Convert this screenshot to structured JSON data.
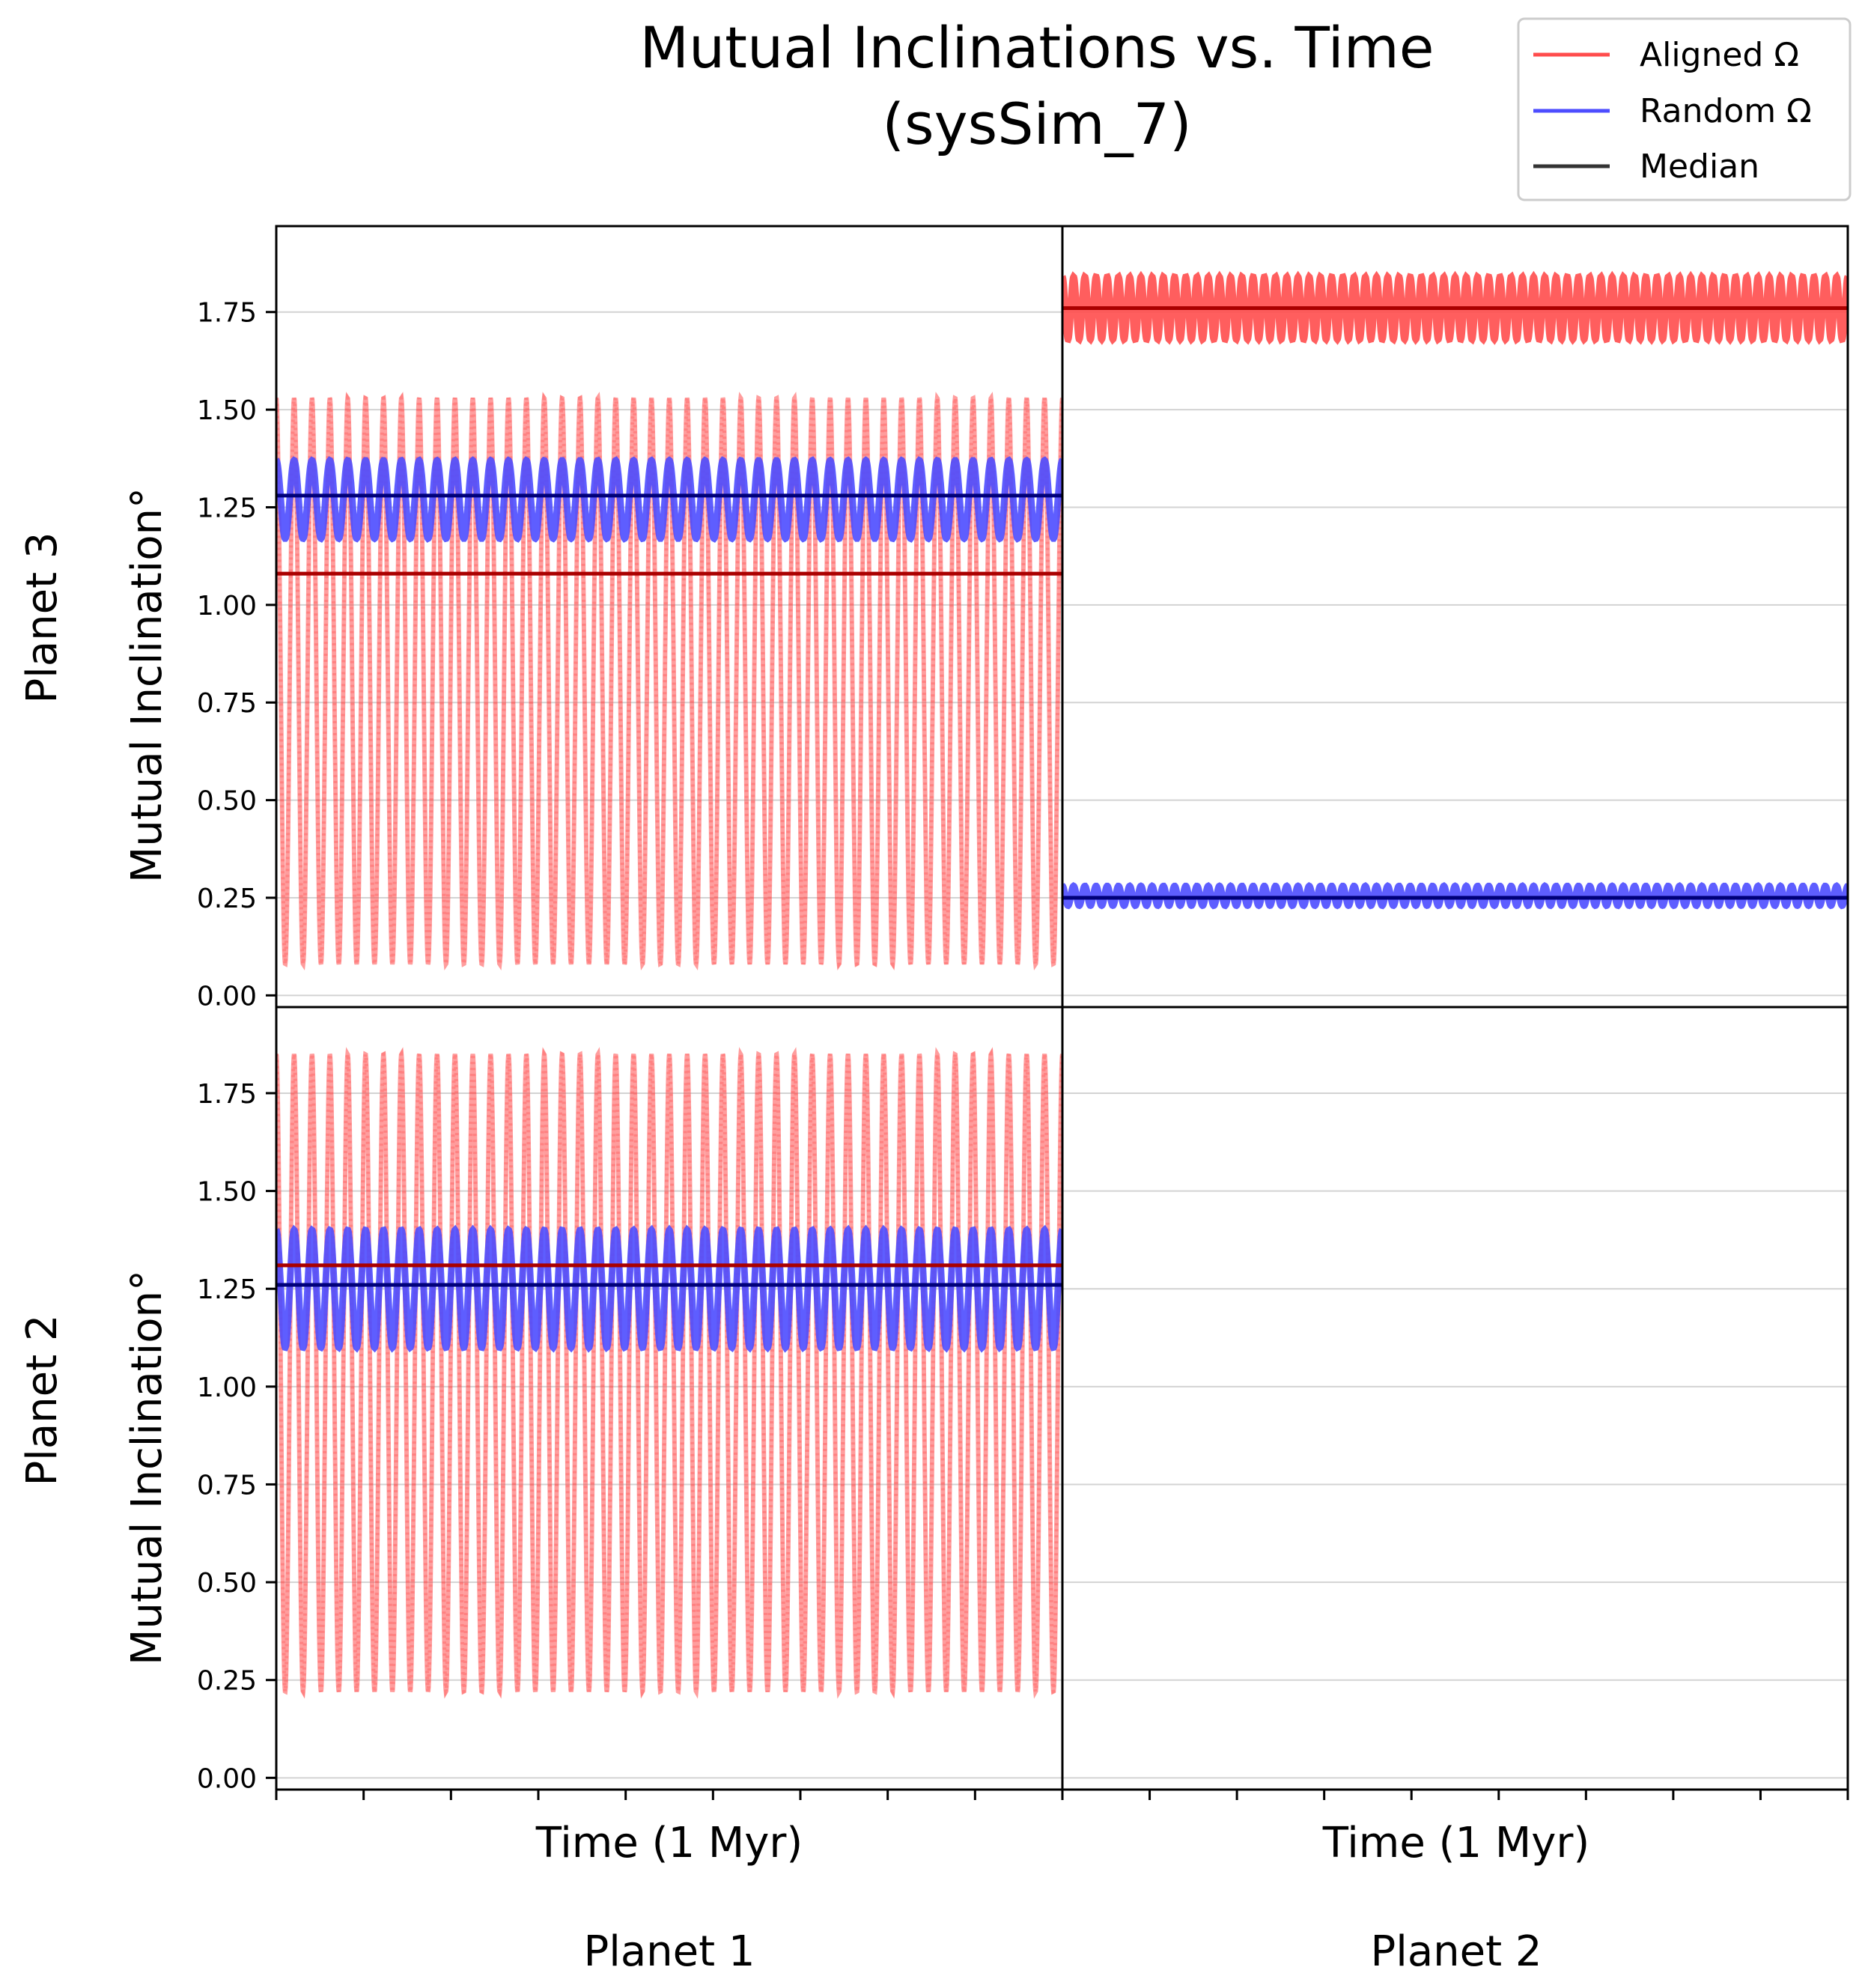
{
  "figure": {
    "title_line1": "Mutual Inclinations vs. Time",
    "title_line2": "(sysSim_7)",
    "column_labels": [
      "Planet 1",
      "Planet 2"
    ],
    "row_labels": [
      "Planet 3",
      "Planet 2"
    ],
    "ylabel": "Mutual Inclination°",
    "xlabel": "Time (1 Myr)"
  },
  "legend": {
    "placement": "top-right",
    "entries": [
      {
        "label": "Aligned Ω",
        "color": "#ff4d4d"
      },
      {
        "label": "Random Ω",
        "color": "#4d4dff"
      },
      {
        "label": "Median",
        "color": "#333333"
      }
    ]
  },
  "colors": {
    "aligned": "#ff4d4d",
    "random": "#4d4dff",
    "aligned_median": "#aa0000",
    "random_median": "#00007a",
    "grid": "#d3d3d3"
  },
  "chart_data": {
    "type": "line",
    "ylim": [
      -0.03,
      1.97
    ],
    "yticks": [
      "0.00",
      "0.25",
      "0.50",
      "0.75",
      "1.00",
      "1.25",
      "1.50",
      "1.75"
    ],
    "grid": "horizontal",
    "x_ticks_count": 10,
    "panels": [
      {
        "row": "Planet 3",
        "col": "Planet 1",
        "series": [
          {
            "name": "Aligned Ω",
            "min": 0.08,
            "max": 1.53,
            "cycles": 44,
            "median": 1.08
          },
          {
            "name": "Random Ω",
            "min": 1.17,
            "max": 1.37,
            "cycles": 44,
            "median": 1.28
          }
        ]
      },
      {
        "row": "Planet 3",
        "col": "Planet 2",
        "series": [
          {
            "name": "Aligned Ω",
            "min": 1.68,
            "max": 1.84,
            "cycles": 70,
            "median": 1.76
          },
          {
            "name": "Random Ω",
            "min": 0.23,
            "max": 0.28,
            "cycles": 70,
            "median": 0.25
          }
        ]
      },
      {
        "row": "Planet 2",
        "col": "Planet 1",
        "series": [
          {
            "name": "Aligned Ω",
            "min": 0.22,
            "max": 1.85,
            "cycles": 44,
            "median": 1.31
          },
          {
            "name": "Random Ω",
            "min": 1.1,
            "max": 1.4,
            "cycles": 44,
            "median": 1.26
          }
        ]
      },
      {
        "row": "Planet 2",
        "col": "Planet 2",
        "series": []
      }
    ]
  }
}
